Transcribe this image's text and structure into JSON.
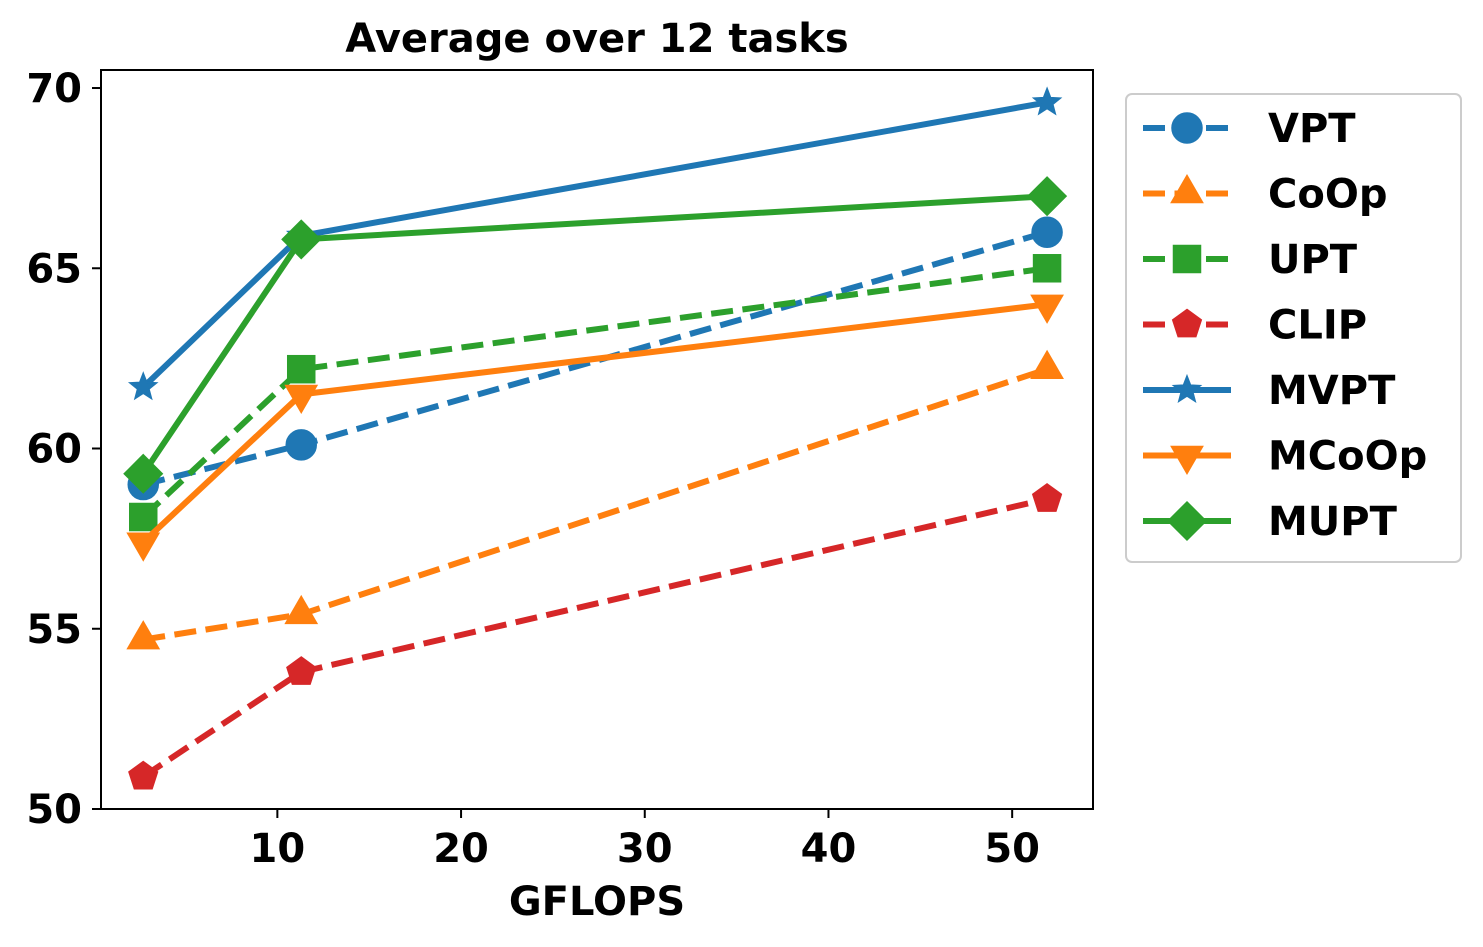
{
  "chart_data": {
    "type": "line",
    "title": "Average over 12 tasks",
    "xlabel": "GFLOPS",
    "ylabel": "",
    "xlim": [
      0.4,
      54.4
    ],
    "ylim": [
      50,
      70.5
    ],
    "xticks": [
      10,
      20,
      30,
      40,
      50
    ],
    "yticks": [
      50,
      55,
      60,
      65,
      70
    ],
    "grid": false,
    "legend_position": "outside-right",
    "series": [
      {
        "name": "VPT",
        "color": "#1f77b4",
        "dash": "dashed",
        "marker": "circle",
        "x": [
          2.7,
          11.3,
          51.9
        ],
        "y": [
          59.0,
          60.1,
          66.0
        ]
      },
      {
        "name": "CoOp",
        "color": "#ff7f0e",
        "dash": "dashed",
        "marker": "triangle-up",
        "x": [
          2.7,
          11.3,
          51.9
        ],
        "y": [
          54.7,
          55.4,
          62.2
        ]
      },
      {
        "name": "UPT",
        "color": "#2ca02c",
        "dash": "dashed",
        "marker": "square",
        "x": [
          2.7,
          11.3,
          51.9
        ],
        "y": [
          58.1,
          62.2,
          65.0
        ]
      },
      {
        "name": "CLIP",
        "color": "#d62728",
        "dash": "dashed",
        "marker": "pentagon",
        "x": [
          2.7,
          11.3,
          51.9
        ],
        "y": [
          50.9,
          53.8,
          58.6
        ]
      },
      {
        "name": "MVPT",
        "color": "#1f77b4",
        "dash": "solid",
        "marker": "star",
        "x": [
          2.7,
          11.3,
          51.9
        ],
        "y": [
          61.7,
          65.9,
          69.6
        ]
      },
      {
        "name": "MCoOp",
        "color": "#ff7f0e",
        "dash": "solid",
        "marker": "triangle-down",
        "x": [
          2.7,
          11.3,
          51.9
        ],
        "y": [
          57.4,
          61.5,
          64.0
        ]
      },
      {
        "name": "MUPT",
        "color": "#2ca02c",
        "dash": "solid",
        "marker": "diamond",
        "x": [
          2.7,
          11.3,
          51.9
        ],
        "y": [
          59.3,
          65.8,
          67.0
        ]
      }
    ]
  }
}
